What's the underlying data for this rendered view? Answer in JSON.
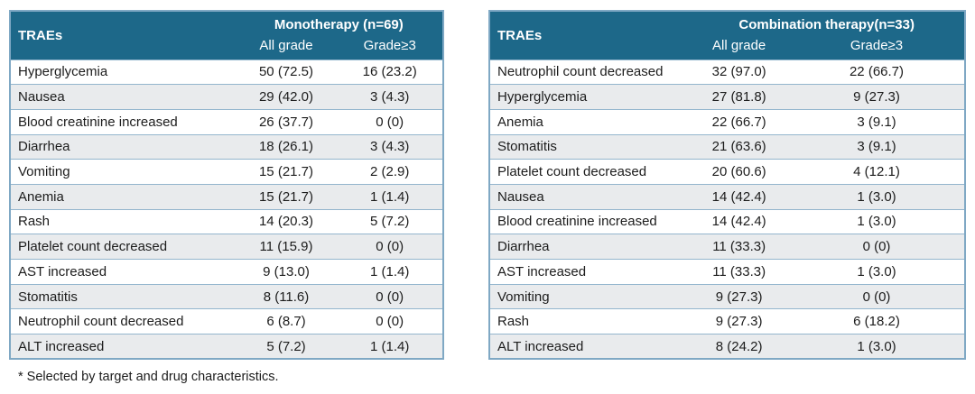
{
  "colors": {
    "header_bg": "#1d6889",
    "header_text": "#ffffff",
    "row_alt_bg": "#e9ebed",
    "row_base_bg": "#ffffff",
    "inner_border": "#93b5cd",
    "outer_border": "#7fa8c4",
    "text": "#1c1c1c"
  },
  "footer": {
    "note": "* Selected by target and drug characteristics."
  },
  "tables": [
    {
      "id": "monotherapy",
      "corner_label": "TRAEs",
      "group_header": "Monotherapy (n=69)",
      "sub_headers": [
        "All grade",
        "Grade≥3"
      ],
      "rows": [
        {
          "trae": "Hyperglycemia",
          "all_grade": "50 (72.5)",
          "grade3": "16 (23.2)"
        },
        {
          "trae": "Nausea",
          "all_grade": "29 (42.0)",
          "grade3": "3 (4.3)"
        },
        {
          "trae": "Blood creatinine increased",
          "all_grade": "26 (37.7)",
          "grade3": "0 (0)"
        },
        {
          "trae": "Diarrhea",
          "all_grade": "18 (26.1)",
          "grade3": "3 (4.3)"
        },
        {
          "trae": "Vomiting",
          "all_grade": "15 (21.7)",
          "grade3": "2 (2.9)"
        },
        {
          "trae": "Anemia",
          "all_grade": "15 (21.7)",
          "grade3": "1 (1.4)"
        },
        {
          "trae": "Rash",
          "all_grade": "14 (20.3)",
          "grade3": "5 (7.2)"
        },
        {
          "trae": "Platelet count decreased",
          "all_grade": "11 (15.9)",
          "grade3": "0 (0)"
        },
        {
          "trae": "AST increased",
          "all_grade": "9 (13.0)",
          "grade3": "1 (1.4)"
        },
        {
          "trae": "Stomatitis",
          "all_grade": "8 (11.6)",
          "grade3": "0 (0)"
        },
        {
          "trae": "Neutrophil count decreased",
          "all_grade": "6 (8.7)",
          "grade3": "0 (0)"
        },
        {
          "trae": "ALT increased",
          "all_grade": "5 (7.2)",
          "grade3": "1 (1.4)"
        }
      ]
    },
    {
      "id": "combination",
      "corner_label": "TRAEs",
      "group_header": "Combination therapy(n=33)",
      "sub_headers": [
        "All grade",
        "Grade≥3"
      ],
      "rows": [
        {
          "trae": "Neutrophil count decreased",
          "all_grade": "32 (97.0)",
          "grade3": "22 (66.7)"
        },
        {
          "trae": "Hyperglycemia",
          "all_grade": "27 (81.8)",
          "grade3": "9 (27.3)"
        },
        {
          "trae": "Anemia",
          "all_grade": "22 (66.7)",
          "grade3": "3 (9.1)"
        },
        {
          "trae": "Stomatitis",
          "all_grade": "21 (63.6)",
          "grade3": "3 (9.1)"
        },
        {
          "trae": "Platelet count decreased",
          "all_grade": "20 (60.6)",
          "grade3": "4 (12.1)"
        },
        {
          "trae": "Nausea",
          "all_grade": "14 (42.4)",
          "grade3": "1 (3.0)"
        },
        {
          "trae": "Blood creatinine increased",
          "all_grade": "14 (42.4)",
          "grade3": "1 (3.0)"
        },
        {
          "trae": "Diarrhea",
          "all_grade": "11 (33.3)",
          "grade3": "0 (0)"
        },
        {
          "trae": "AST increased",
          "all_grade": "11 (33.3)",
          "grade3": "1 (3.0)"
        },
        {
          "trae": "Vomiting",
          "all_grade": "9 (27.3)",
          "grade3": "0 (0)"
        },
        {
          "trae": "Rash",
          "all_grade": "9 (27.3)",
          "grade3": "6 (18.2)"
        },
        {
          "trae": "ALT increased",
          "all_grade": "8 (24.2)",
          "grade3": "1 (3.0)"
        }
      ]
    }
  ],
  "chart_data": {
    "type": "table",
    "tables": [
      {
        "title": "Monotherapy (n=69)",
        "columns": [
          "TRAEs",
          "All grade",
          "Grade≥3"
        ],
        "rows": [
          [
            "Hyperglycemia",
            "50 (72.5)",
            "16 (23.2)"
          ],
          [
            "Nausea",
            "29 (42.0)",
            "3 (4.3)"
          ],
          [
            "Blood creatinine increased",
            "26 (37.7)",
            "0 (0)"
          ],
          [
            "Diarrhea",
            "18 (26.1)",
            "3 (4.3)"
          ],
          [
            "Vomiting",
            "15 (21.7)",
            "2 (2.9)"
          ],
          [
            "Anemia",
            "15 (21.7)",
            "1 (1.4)"
          ],
          [
            "Rash",
            "14 (20.3)",
            "5 (7.2)"
          ],
          [
            "Platelet count decreased",
            "11 (15.9)",
            "0 (0)"
          ],
          [
            "AST increased",
            "9 (13.0)",
            "1 (1.4)"
          ],
          [
            "Stomatitis",
            "8 (11.6)",
            "0 (0)"
          ],
          [
            "Neutrophil count decreased",
            "6 (8.7)",
            "0 (0)"
          ],
          [
            "ALT increased",
            "5 (7.2)",
            "1 (1.4)"
          ]
        ]
      },
      {
        "title": "Combination therapy(n=33)",
        "columns": [
          "TRAEs",
          "All grade",
          "Grade≥3"
        ],
        "rows": [
          [
            "Neutrophil count decreased",
            "32 (97.0)",
            "22 (66.7)"
          ],
          [
            "Hyperglycemia",
            "27 (81.8)",
            "9 (27.3)"
          ],
          [
            "Anemia",
            "22 (66.7)",
            "3 (9.1)"
          ],
          [
            "Stomatitis",
            "21 (63.6)",
            "3 (9.1)"
          ],
          [
            "Platelet count decreased",
            "20 (60.6)",
            "4 (12.1)"
          ],
          [
            "Nausea",
            "14 (42.4)",
            "1 (3.0)"
          ],
          [
            "Blood creatinine increased",
            "14 (42.4)",
            "1 (3.0)"
          ],
          [
            "Diarrhea",
            "11 (33.3)",
            "0 (0)"
          ],
          [
            "AST increased",
            "11 (33.3)",
            "1 (3.0)"
          ],
          [
            "Vomiting",
            "9 (27.3)",
            "0 (0)"
          ],
          [
            "Rash",
            "9 (27.3)",
            "6 (18.2)"
          ],
          [
            "ALT increased",
            "8 (24.2)",
            "1 (3.0)"
          ]
        ]
      }
    ],
    "footnote": "* Selected by target and drug characteristics."
  }
}
